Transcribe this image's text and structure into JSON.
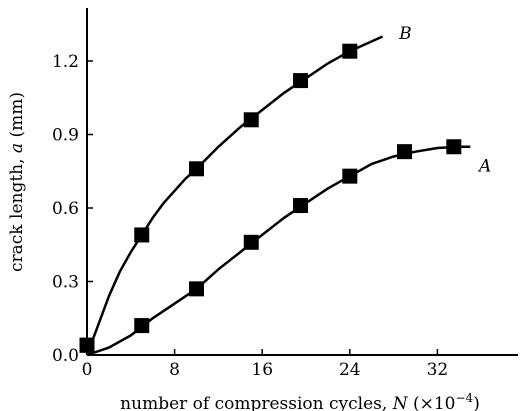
{
  "chart_data": {
    "type": "line",
    "title": "",
    "xlabel": {
      "prefix": "number of compression cycles, ",
      "var": "N",
      "unit_open": " (×10",
      "unit_exp": "−4",
      "unit_close": ")"
    },
    "ylabel": {
      "prefix": "crack length, ",
      "var": "a",
      "unit": " (mm)"
    },
    "xlim": [
      0,
      36
    ],
    "ylim": [
      0,
      1.4
    ],
    "xticks": [
      "0",
      "8",
      "16",
      "24",
      "32"
    ],
    "yticks": [
      "0.0",
      "0.3",
      "0.6",
      "0.9",
      "1.2"
    ],
    "grid": false,
    "series": [
      {
        "name": "A",
        "color": "#000000",
        "marker": "square",
        "points": [
          {
            "x": 0,
            "y": 0.04
          },
          {
            "x": 5,
            "y": 0.12
          },
          {
            "x": 10,
            "y": 0.27
          },
          {
            "x": 15,
            "y": 0.46
          },
          {
            "x": 19.5,
            "y": 0.61
          },
          {
            "x": 24,
            "y": 0.73
          },
          {
            "x": 29,
            "y": 0.83
          },
          {
            "x": 33.5,
            "y": 0.85
          }
        ],
        "curve": [
          [
            0,
            0.0
          ],
          [
            2,
            0.03
          ],
          [
            4,
            0.08
          ],
          [
            6,
            0.15
          ],
          [
            8,
            0.21
          ],
          [
            10,
            0.27
          ],
          [
            12,
            0.35
          ],
          [
            14,
            0.42
          ],
          [
            16,
            0.49
          ],
          [
            18,
            0.56
          ],
          [
            20,
            0.62
          ],
          [
            22,
            0.68
          ],
          [
            24,
            0.73
          ],
          [
            26,
            0.78
          ],
          [
            28,
            0.81
          ],
          [
            30,
            0.83
          ],
          [
            32,
            0.845
          ],
          [
            34,
            0.85
          ],
          [
            35,
            0.85
          ]
        ]
      },
      {
        "name": "B",
        "color": "#000000",
        "marker": "square",
        "points": [
          {
            "x": 0,
            "y": 0.04
          },
          {
            "x": 5,
            "y": 0.49
          },
          {
            "x": 10,
            "y": 0.76
          },
          {
            "x": 15,
            "y": 0.96
          },
          {
            "x": 19.5,
            "y": 1.12
          },
          {
            "x": 24,
            "y": 1.24
          }
        ],
        "curve": [
          [
            0,
            0.0
          ],
          [
            1,
            0.12
          ],
          [
            2,
            0.24
          ],
          [
            3,
            0.34
          ],
          [
            4,
            0.42
          ],
          [
            5,
            0.49
          ],
          [
            6,
            0.56
          ],
          [
            7,
            0.62
          ],
          [
            8,
            0.67
          ],
          [
            9,
            0.72
          ],
          [
            10,
            0.76
          ],
          [
            12,
            0.85
          ],
          [
            14,
            0.93
          ],
          [
            16,
            1.0
          ],
          [
            18,
            1.07
          ],
          [
            20,
            1.13
          ],
          [
            22,
            1.19
          ],
          [
            24,
            1.24
          ],
          [
            26,
            1.28
          ],
          [
            27,
            1.3
          ]
        ]
      }
    ]
  }
}
